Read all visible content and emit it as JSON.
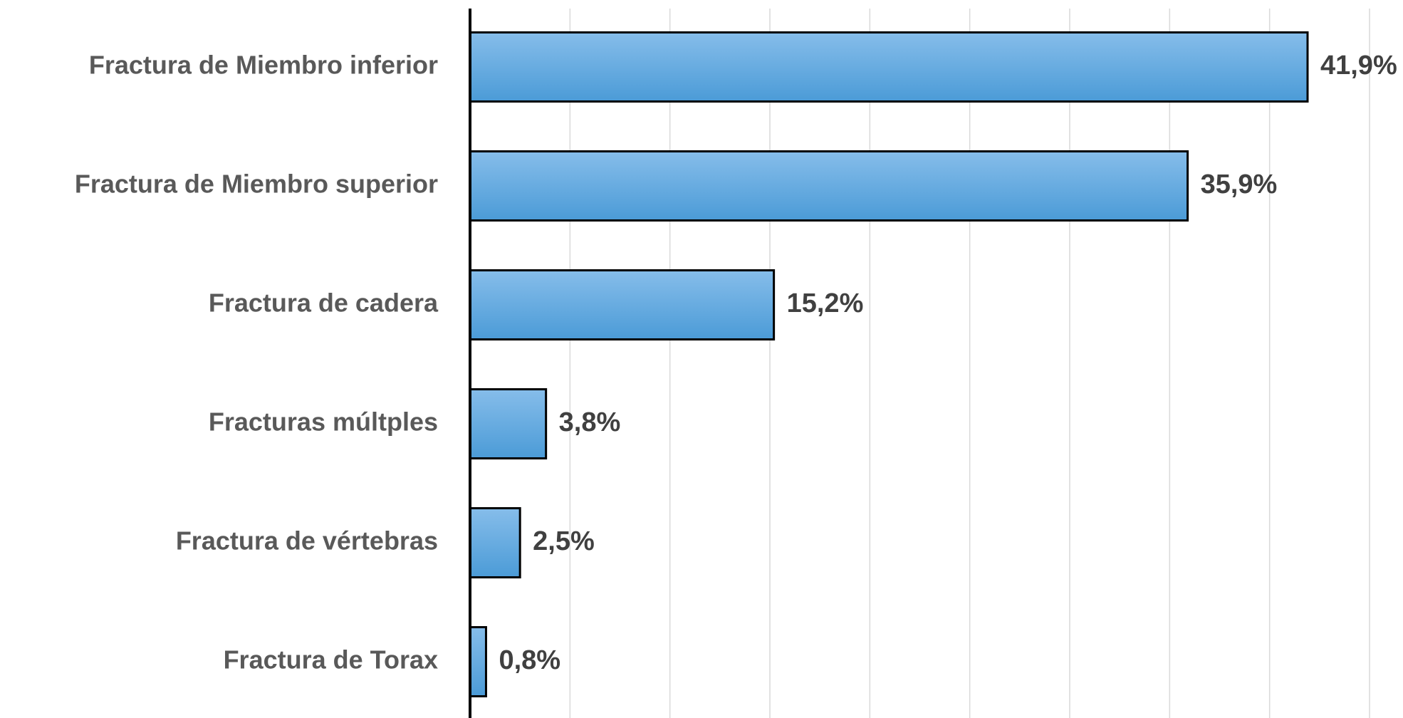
{
  "chart_data": {
    "type": "bar",
    "orientation": "horizontal",
    "categories": [
      "Fractura de Miembro inferior",
      "Fractura de Miembro superior",
      "Fractura de cadera",
      "Fracturas múltples",
      "Fractura de vértebras",
      "Fractura de Torax"
    ],
    "values": [
      41.9,
      35.9,
      15.2,
      3.8,
      2.5,
      0.8
    ],
    "value_labels": [
      "41,9%",
      "35,9%",
      "15,2%",
      "3,8%",
      "2,5%",
      "0,8%"
    ],
    "color": "#5ba3dd",
    "xlim": [
      0,
      45
    ],
    "xticks": [
      0,
      5,
      10,
      15,
      20,
      25,
      30,
      35,
      40,
      45
    ],
    "grid": true
  }
}
